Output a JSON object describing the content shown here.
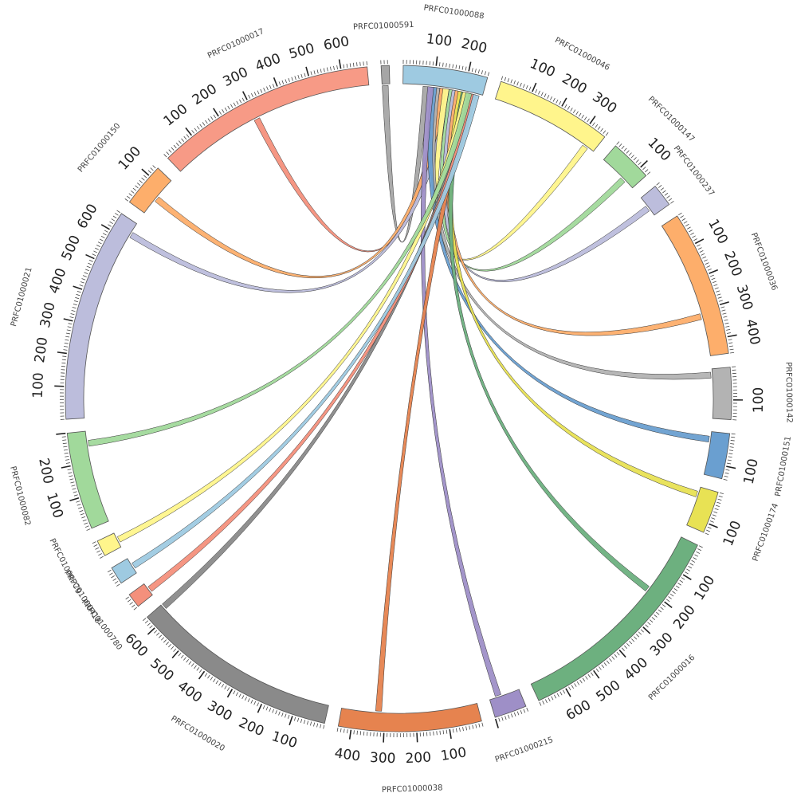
{
  "chart_data": {
    "type": "chord",
    "tick_unit": "",
    "segments": [
      {
        "id": "PRFC01000591",
        "label": "PRFC01000591",
        "length": 25,
        "color": "#a6a6a6",
        "ticks": [],
        "label_positions": []
      },
      {
        "id": "PRFC01000088",
        "label": "PRFC01000088",
        "length": 260,
        "color": "#9ecae1",
        "ticks": [
          100,
          200
        ]
      },
      {
        "id": "PRFC01000046",
        "label": "PRFC01000046",
        "length": 360,
        "color": "#fff58c",
        "ticks": [
          100,
          200,
          300
        ]
      },
      {
        "id": "PRFC01000147",
        "label": "PRFC01000147",
        "length": 130,
        "color": "#a1d99b",
        "ticks": [
          100
        ]
      },
      {
        "id": "PRFC01000237",
        "label": "PRFC01000237",
        "length": 70,
        "color": "#bcbddc",
        "ticks": []
      },
      {
        "id": "PRFC01000036",
        "label": "PRFC01000036",
        "length": 450,
        "color": "#fdae6b",
        "ticks": [
          100,
          200,
          300,
          400
        ]
      },
      {
        "id": "PRFC01000142",
        "label": "PRFC01000142",
        "length": 160,
        "color": "#b3b3b3",
        "ticks": [
          100
        ]
      },
      {
        "id": "PRFC01000151",
        "label": "PRFC01000151",
        "length": 140,
        "color": "#6a9fd0",
        "ticks": [
          100
        ]
      },
      {
        "id": "PRFC01000174",
        "label": "PRFC01000174",
        "length": 130,
        "color": "#e8e254",
        "ticks": [
          100
        ]
      },
      {
        "id": "PRFC01000016",
        "label": "PRFC01000016",
        "length": 690,
        "color": "#6db07f",
        "ticks": [
          100,
          200,
          300,
          400,
          500,
          600
        ]
      },
      {
        "id": "PRFC01000215",
        "label": "PRFC01000215",
        "length": 100,
        "color": "#9e8fc7",
        "ticks": []
      },
      {
        "id": "PRFC01000038",
        "label": "PRFC01000038",
        "length": 440,
        "color": "#e6834f",
        "ticks": [
          100,
          200,
          300,
          400
        ]
      },
      {
        "id": "PRFC01000020",
        "label": "PRFC01000020",
        "length": 640,
        "color": "#8a8a8a",
        "ticks": [
          100,
          200,
          300,
          400,
          500,
          600
        ]
      },
      {
        "id": "PRFC01000780",
        "label": "PRFC01000780",
        "length": 45,
        "color": "#f4907c",
        "ticks": []
      },
      {
        "id": "PRFC01000418",
        "label": "PRFC01000418",
        "length": 55,
        "color": "#9ecae1",
        "ticks": []
      },
      {
        "id": "PRFC01000779",
        "label": "PRFC01000779",
        "length": 50,
        "color": "#fff58c",
        "ticks": []
      },
      {
        "id": "PRFC01000082",
        "label": "PRFC01000082",
        "length": 300,
        "color": "#a1d99b",
        "ticks": [
          100,
          200
        ]
      },
      {
        "id": "PRFC01000021",
        "label": "PRFC01000021",
        "length": 660,
        "color": "#bcbddc",
        "ticks": [
          100,
          200,
          300,
          400,
          500,
          600
        ]
      },
      {
        "id": "PRFC01000150",
        "label": "PRFC01000150",
        "length": 135,
        "color": "#fdae6b",
        "ticks": [
          100
        ]
      },
      {
        "id": "PRFC01000017",
        "label": "PRFC01000017",
        "length": 680,
        "color": "#f79a86",
        "ticks": [
          100,
          200,
          300,
          400,
          500,
          600
        ]
      }
    ],
    "links": [
      {
        "source": "PRFC01000591",
        "source_pos": 10,
        "target": "PRFC01000088",
        "target_pos": 75,
        "color": "#a6a6a6"
      },
      {
        "source": "PRFC01000017",
        "source_pos": 300,
        "target": "PRFC01000088",
        "target_pos": 120,
        "color": "#f4907c"
      },
      {
        "source": "PRFC01000150",
        "source_pos": 60,
        "target": "PRFC01000088",
        "target_pos": 130,
        "color": "#fdae6b"
      },
      {
        "source": "PRFC01000021",
        "source_pos": 620,
        "target": "PRFC01000088",
        "target_pos": 150,
        "color": "#bcbddc"
      },
      {
        "source": "PRFC01000046",
        "source_pos": 330,
        "target": "PRFC01000088",
        "target_pos": 140,
        "color": "#fff58c"
      },
      {
        "source": "PRFC01000147",
        "source_pos": 90,
        "target": "PRFC01000088",
        "target_pos": 160,
        "color": "#a1d99b"
      },
      {
        "source": "PRFC01000237",
        "source_pos": 40,
        "target": "PRFC01000088",
        "target_pos": 170,
        "color": "#bcbddc"
      },
      {
        "source": "PRFC01000036",
        "source_pos": 320,
        "target": "PRFC01000088",
        "target_pos": 180,
        "color": "#fdae6b"
      },
      {
        "source": "PRFC01000142",
        "source_pos": 20,
        "target": "PRFC01000088",
        "target_pos": 110,
        "color": "#b3b3b3"
      },
      {
        "source": "PRFC01000151",
        "source_pos": 25,
        "target": "PRFC01000088",
        "target_pos": 100,
        "color": "#6a9fd0"
      },
      {
        "source": "PRFC01000174",
        "source_pos": 25,
        "target": "PRFC01000088",
        "target_pos": 190,
        "color": "#e8e254"
      },
      {
        "source": "PRFC01000016",
        "source_pos": 200,
        "target": "PRFC01000088",
        "target_pos": 200,
        "color": "#6db07f"
      },
      {
        "source": "PRFC01000215",
        "source_pos": 70,
        "target": "PRFC01000088",
        "target_pos": 90,
        "color": "#9e8fc7"
      },
      {
        "source": "PRFC01000038",
        "source_pos": 320,
        "target": "PRFC01000088",
        "target_pos": 210,
        "color": "#e6834f"
      },
      {
        "source": "PRFC01000020",
        "source_pos": 630,
        "target": "PRFC01000088",
        "target_pos": 220,
        "color": "#8a8a8a"
      },
      {
        "source": "PRFC01000780",
        "source_pos": 20,
        "target": "PRFC01000088",
        "target_pos": 230,
        "color": "#f4907c"
      },
      {
        "source": "PRFC01000418",
        "source_pos": 25,
        "target": "PRFC01000088",
        "target_pos": 240,
        "color": "#9ecae1"
      },
      {
        "source": "PRFC01000779",
        "source_pos": 25,
        "target": "PRFC01000088",
        "target_pos": 205,
        "color": "#fff58c"
      },
      {
        "source": "PRFC01000082",
        "source_pos": 260,
        "target": "PRFC01000088",
        "target_pos": 215,
        "color": "#a1d99b"
      }
    ]
  }
}
